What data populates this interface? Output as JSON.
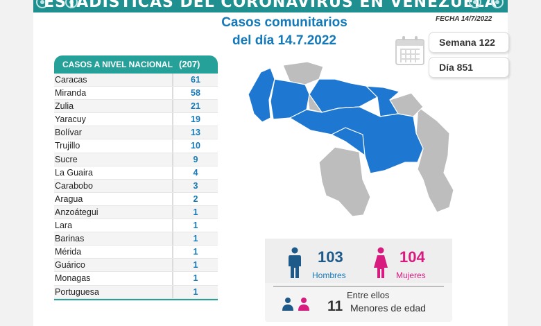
{
  "banner": {
    "title": "ESTADÍSTICAS DEL CORONAVIRUS EN VENEZUELA"
  },
  "header": {
    "subtitle_line1": "Casos comunitarios",
    "subtitle_line2": "del día 14.7.2022",
    "fecha": "FECHA 14/7/2022",
    "semana": "Semana 122",
    "dia": "Día 851"
  },
  "table": {
    "header_label": "CASOS A NIVEL NACIONAL",
    "total": "(207)",
    "rows": [
      {
        "name": "Caracas",
        "value": "61"
      },
      {
        "name": "Miranda",
        "value": "58"
      },
      {
        "name": "Zulia",
        "value": "21"
      },
      {
        "name": "Yaracuy",
        "value": "19"
      },
      {
        "name": "Bolívar",
        "value": "13"
      },
      {
        "name": "Trujillo",
        "value": "10"
      },
      {
        "name": "Sucre",
        "value": "9"
      },
      {
        "name": "La Guaira",
        "value": "4"
      },
      {
        "name": "Carabobo",
        "value": "3"
      },
      {
        "name": "Aragua",
        "value": "2"
      },
      {
        "name": "Anzoátegui",
        "value": "1"
      },
      {
        "name": "Lara",
        "value": "1"
      },
      {
        "name": "Barinas",
        "value": "1"
      },
      {
        "name": "Mérida",
        "value": "1"
      },
      {
        "name": "Guárico",
        "value": "1"
      },
      {
        "name": "Monagas",
        "value": "1"
      },
      {
        "name": "Portuguesa",
        "value": "1"
      }
    ]
  },
  "stats": {
    "men_count": "103",
    "men_label": "Hombres",
    "women_count": "104",
    "women_label": "Mujeres",
    "entre_label": "Entre ellos",
    "minors_count": "11",
    "minors_label": "Menores de edad"
  },
  "colors": {
    "teal": "#26a19a",
    "blue": "#1479b8",
    "map_blue": "#1e78d2",
    "map_gray": "#bdbdbd",
    "pink": "#d81b7f",
    "navy": "#1d5a8a"
  },
  "icons": [
    "calendar-icon",
    "man-icon",
    "woman-icon",
    "children-icon",
    "virus-icon"
  ]
}
